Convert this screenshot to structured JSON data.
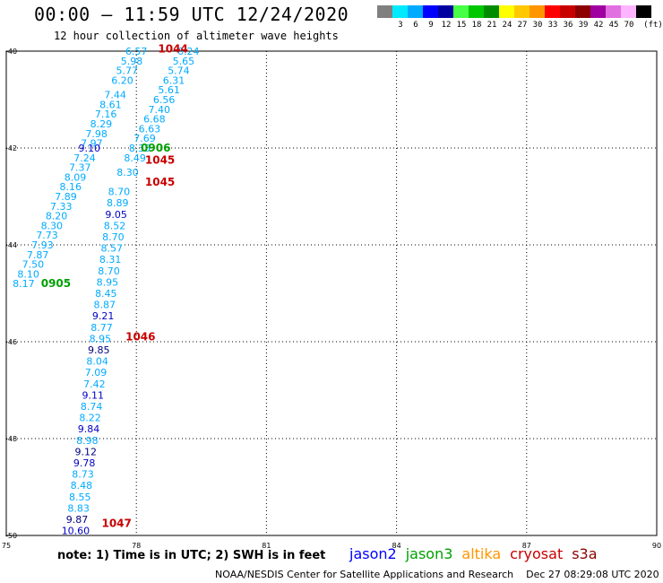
{
  "header": {
    "title": "00:00 – 11:59 UTC 12/24/2020",
    "subtitle": "12 hour collection of altimeter wave heights"
  },
  "colorbar": {
    "unit": "(ft)",
    "colors": [
      "#808080",
      "#00eaff",
      "#00aaff",
      "#0000ff",
      "#0000a0",
      "#46ff46",
      "#00c800",
      "#008c00",
      "#ffff00",
      "#ffc800",
      "#ff9600",
      "#ff0000",
      "#c80000",
      "#8c0000",
      "#a000a0",
      "#e070e0",
      "#ffb4ff",
      "#000000"
    ],
    "labels": [
      "3",
      "6",
      "9",
      "12",
      "15",
      "18",
      "21",
      "24",
      "27",
      "30",
      "33",
      "36",
      "39",
      "42",
      "45",
      "70"
    ]
  },
  "map": {
    "lon_range": [
      75,
      90
    ],
    "lat_range": [
      -40,
      -50
    ],
    "x_ticks": [
      "75",
      "78",
      "81",
      "84",
      "87",
      "90"
    ],
    "y_ticks": [
      "-40",
      "-42",
      "-44",
      "-46",
      "-48",
      "-50"
    ]
  },
  "wave_heights": {
    "ascending_pass": [
      {
        "v": "6.57",
        "lat": -40.0,
        "c": "c"
      },
      {
        "v": "5.98",
        "lat": -40.2,
        "c": "c"
      },
      {
        "v": "5.77",
        "lat": -40.4,
        "c": "c"
      },
      {
        "v": "6.20",
        "lat": -40.6,
        "c": "c"
      },
      {
        "v": "7.44",
        "lat": -40.9,
        "c": "c"
      },
      {
        "v": "8.61",
        "lat": -41.1,
        "c": "c"
      },
      {
        "v": "7.16",
        "lat": -41.3,
        "c": "c"
      },
      {
        "v": "8.29",
        "lat": -41.5,
        "c": "c"
      },
      {
        "v": "7.98",
        "lat": -41.7,
        "c": "c"
      },
      {
        "v": "7.97",
        "lat": -41.9,
        "c": "c"
      },
      {
        "v": "9.10",
        "lat": -42.0,
        "c": "b"
      },
      {
        "v": "7.24",
        "lat": -42.2,
        "c": "c"
      },
      {
        "v": "7.37",
        "lat": -42.4,
        "c": "c"
      },
      {
        "v": "8.09",
        "lat": -42.6,
        "c": "c"
      },
      {
        "v": "8.16",
        "lat": -42.8,
        "c": "c"
      },
      {
        "v": "7.89",
        "lat": -43.0,
        "c": "c"
      },
      {
        "v": "7.33",
        "lat": -43.2,
        "c": "c"
      },
      {
        "v": "8.20",
        "lat": -43.4,
        "c": "c"
      },
      {
        "v": "8.30",
        "lat": -43.6,
        "c": "c"
      },
      {
        "v": "7.73",
        "lat": -43.8,
        "c": "c"
      },
      {
        "v": "7.93",
        "lat": -44.0,
        "c": "c"
      },
      {
        "v": "7.87",
        "lat": -44.2,
        "c": "c"
      },
      {
        "v": "7.50",
        "lat": -44.4,
        "c": "c"
      },
      {
        "v": "8.10",
        "lat": -44.6,
        "c": "c"
      },
      {
        "v": "8.17",
        "lat": -44.8,
        "c": "c"
      }
    ],
    "descending_pass_upper": [
      {
        "v": "6.24",
        "lat": -40.0,
        "c": "c"
      },
      {
        "v": "5.65",
        "lat": -40.2,
        "c": "c"
      },
      {
        "v": "5.74",
        "lat": -40.4,
        "c": "c"
      },
      {
        "v": "6.31",
        "lat": -40.6,
        "c": "c"
      },
      {
        "v": "5.61",
        "lat": -40.8,
        "c": "c"
      },
      {
        "v": "6.56",
        "lat": -41.0,
        "c": "c"
      },
      {
        "v": "7.40",
        "lat": -41.2,
        "c": "c"
      },
      {
        "v": "6.68",
        "lat": -41.4,
        "c": "c"
      },
      {
        "v": "6.63",
        "lat": -41.6,
        "c": "c"
      },
      {
        "v": "7.69",
        "lat": -41.8,
        "c": "c"
      },
      {
        "v": "8.35",
        "lat": -42.0,
        "c": "c"
      },
      {
        "v": "8.49",
        "lat": -42.2,
        "c": "c"
      },
      {
        "v": "8.30",
        "lat": -42.5,
        "c": "c"
      }
    ],
    "meridional_pass": [
      {
        "v": "8.70",
        "c": "c"
      },
      {
        "v": "8.89",
        "c": "c"
      },
      {
        "v": "9.05",
        "c": "b"
      },
      {
        "v": "8.52",
        "c": "c"
      },
      {
        "v": "8.70",
        "c": "c"
      },
      {
        "v": "8.57",
        "c": "c"
      },
      {
        "v": "8.31",
        "c": "c"
      },
      {
        "v": "8.70",
        "c": "c"
      },
      {
        "v": "8.95",
        "c": "c"
      },
      {
        "v": "8.45",
        "c": "c"
      },
      {
        "v": "8.87",
        "c": "c"
      },
      {
        "v": "9.21",
        "c": "b"
      },
      {
        "v": "8.77",
        "c": "c"
      },
      {
        "v": "8.95",
        "c": "c"
      },
      {
        "v": "9.85",
        "c": "n"
      },
      {
        "v": "8.04",
        "c": "c"
      },
      {
        "v": "7.09",
        "c": "c"
      },
      {
        "v": "7.42",
        "c": "c"
      },
      {
        "v": "9.11",
        "c": "b"
      },
      {
        "v": "8.74",
        "c": "c"
      },
      {
        "v": "8.22",
        "c": "c"
      },
      {
        "v": "9.84",
        "c": "b"
      },
      {
        "v": "8.98",
        "c": "c"
      },
      {
        "v": "9.12",
        "c": "n"
      },
      {
        "v": "9.78",
        "c": "b"
      },
      {
        "v": "8.73",
        "c": "c"
      },
      {
        "v": "8.48",
        "c": "c"
      },
      {
        "v": "8.55",
        "c": "c"
      },
      {
        "v": "8.83",
        "c": "c"
      },
      {
        "v": "9.87",
        "c": "n"
      },
      {
        "v": "10.60",
        "c": "b"
      }
    ]
  },
  "pass_times": [
    {
      "t": "1044",
      "sat": "cryosat",
      "lon": 78.5,
      "lat": -39.95
    },
    {
      "t": "0906",
      "sat": "jason3",
      "lon": 78.1,
      "lat": -42.0
    },
    {
      "t": "1045",
      "sat": "cryosat",
      "lon": 78.2,
      "lat": -42.25
    },
    {
      "t": "1045",
      "sat": "cryosat",
      "lon": 78.2,
      "lat": -42.7
    },
    {
      "t": "0905",
      "sat": "jason3",
      "lon": 75.8,
      "lat": -44.8
    },
    {
      "t": "1046",
      "sat": "cryosat",
      "lon": 77.75,
      "lat": -45.9
    },
    {
      "t": "1047",
      "sat": "cryosat",
      "lon": 77.2,
      "lat": -49.75
    }
  ],
  "value_colors": {
    "c": "#00aaff",
    "b": "#0000c8",
    "n": "#000080"
  },
  "footer": {
    "note": "note: 1) Time is in UTC; 2) SWH is in feet",
    "satellites": [
      {
        "name": "jason2",
        "color": "#0000ff"
      },
      {
        "name": "jason3",
        "color": "#00a000"
      },
      {
        "name": "altika",
        "color": "#ff9600"
      },
      {
        "name": "cryosat",
        "color": "#c80000"
      },
      {
        "name": "s3a",
        "color": "#8c0000"
      }
    ],
    "credit_left": "NOAA/NESDIS Center for Satellite Applications and Research",
    "credit_right": "Dec 27 08:29:08 UTC 2020"
  }
}
